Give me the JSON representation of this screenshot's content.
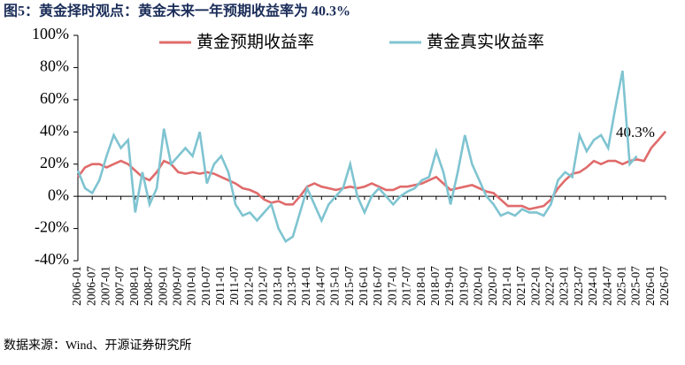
{
  "chart_data": {
    "type": "line",
    "title": "图5：黄金择时观点：黄金未来一年预期收益率为 40.3%",
    "source": "数据来源：Wind、开源证券研究所",
    "annotation": "40.3%",
    "xlim": [
      "2006-01",
      "2026-07"
    ],
    "xticks": [
      "2006-01",
      "2006-07",
      "2007-01",
      "2007-07",
      "2008-01",
      "2008-07",
      "2009-01",
      "2009-07",
      "2010-01",
      "2010-07",
      "2011-01",
      "2011-07",
      "2012-01",
      "2012-07",
      "2013-01",
      "2013-07",
      "2014-01",
      "2014-07",
      "2015-01",
      "2015-07",
      "2016-01",
      "2016-07",
      "2017-01",
      "2017-07",
      "2018-01",
      "2018-07",
      "2019-01",
      "2019-07",
      "2020-01",
      "2020-07",
      "2021-01",
      "2021-07",
      "2022-01",
      "2022-07",
      "2023-01",
      "2023-07",
      "2024-01",
      "2024-07",
      "2025-01",
      "2025-07",
      "2026-01",
      "2026-07"
    ],
    "ylim": [
      -40,
      100
    ],
    "yticks": [
      {
        "value": -40,
        "label": "-40%"
      },
      {
        "value": -20,
        "label": "-20%"
      },
      {
        "value": 0,
        "label": "0%"
      },
      {
        "value": 20,
        "label": "20%"
      },
      {
        "value": 40,
        "label": "40%"
      },
      {
        "value": 60,
        "label": "60%"
      },
      {
        "value": 80,
        "label": "80%"
      },
      {
        "value": 100,
        "label": "100%"
      }
    ],
    "x": [
      "2006-01",
      "2006-04",
      "2006-07",
      "2006-10",
      "2007-01",
      "2007-04",
      "2007-07",
      "2007-10",
      "2008-01",
      "2008-04",
      "2008-07",
      "2008-10",
      "2009-01",
      "2009-04",
      "2009-07",
      "2009-10",
      "2010-01",
      "2010-04",
      "2010-07",
      "2010-10",
      "2011-01",
      "2011-04",
      "2011-07",
      "2011-10",
      "2012-01",
      "2012-04",
      "2012-07",
      "2012-10",
      "2013-01",
      "2013-04",
      "2013-07",
      "2013-10",
      "2014-01",
      "2014-04",
      "2014-07",
      "2014-10",
      "2015-01",
      "2015-04",
      "2015-07",
      "2015-10",
      "2016-01",
      "2016-04",
      "2016-07",
      "2016-10",
      "2017-01",
      "2017-04",
      "2017-07",
      "2017-10",
      "2018-01",
      "2018-04",
      "2018-07",
      "2018-10",
      "2019-01",
      "2019-04",
      "2019-07",
      "2019-10",
      "2020-01",
      "2020-04",
      "2020-07",
      "2020-10",
      "2021-01",
      "2021-04",
      "2021-07",
      "2021-10",
      "2022-01",
      "2022-04",
      "2022-07",
      "2022-10",
      "2023-01",
      "2023-04",
      "2023-07",
      "2023-10",
      "2024-01",
      "2024-04",
      "2024-07",
      "2024-10",
      "2025-01",
      "2025-04",
      "2025-07",
      "2025-10",
      "2026-01",
      "2026-04",
      "2026-07"
    ],
    "series": [
      {
        "name": "黄金预期收益率",
        "color": "#e06b6b",
        "values": [
          12,
          18,
          20,
          20,
          18,
          20,
          22,
          20,
          16,
          12,
          10,
          15,
          22,
          20,
          15,
          14,
          15,
          14,
          15,
          14,
          12,
          10,
          8,
          5,
          4,
          2,
          -2,
          -4,
          -3,
          -5,
          -5,
          0,
          6,
          8,
          6,
          5,
          4,
          5,
          6,
          5,
          6,
          8,
          6,
          4,
          4,
          6,
          6,
          7,
          8,
          10,
          12,
          8,
          4,
          5,
          6,
          7,
          5,
          3,
          2,
          -2,
          -6,
          -6,
          -6,
          -8,
          -7,
          -6,
          -2,
          5,
          10,
          14,
          15,
          18,
          22,
          20,
          22,
          22,
          20,
          22,
          23,
          22,
          30,
          35,
          40.3
        ]
      },
      {
        "name": "黄金真实收益率",
        "color": "#7fc4d1",
        "values": [
          16,
          5,
          2,
          10,
          25,
          38,
          30,
          35,
          -10,
          15,
          -5,
          5,
          42,
          20,
          25,
          30,
          25,
          40,
          8,
          20,
          25,
          15,
          -5,
          -12,
          -10,
          -15,
          -10,
          -5,
          -20,
          -28,
          -25,
          -10,
          5,
          -5,
          -15,
          -5,
          0,
          5,
          20,
          0,
          -10,
          0,
          5,
          0,
          -5,
          0,
          3,
          5,
          10,
          12,
          28,
          15,
          -5,
          15,
          38,
          20,
          10,
          0,
          -5,
          -12,
          -10,
          -12,
          -8,
          -10,
          -10,
          -12,
          -5,
          10,
          15,
          12,
          38,
          28,
          35,
          38,
          30,
          55,
          78,
          20,
          25,
          null,
          null,
          null,
          null
        ]
      }
    ]
  }
}
